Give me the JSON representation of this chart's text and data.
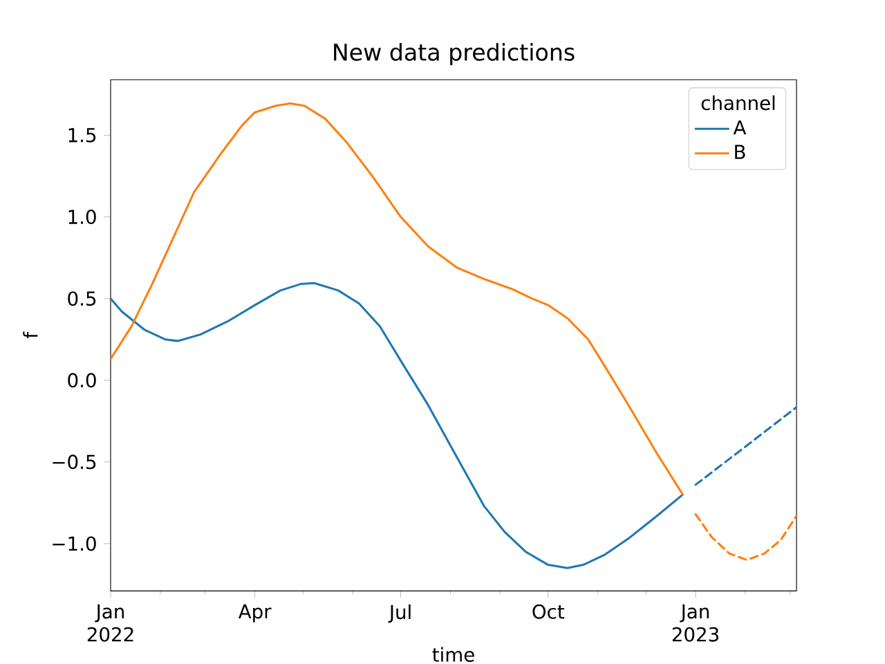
{
  "chart_data": {
    "type": "line",
    "title": "New data predictions",
    "xlabel": "time",
    "ylabel": "f",
    "legend_title": "channel",
    "legend": "top right",
    "xlim": [
      "2022-01-01",
      "2023-03-05"
    ],
    "ylim": [
      -1.29,
      1.84
    ],
    "xticks": [
      {
        "value": "2022-01-01",
        "label": "Jan 2022"
      },
      {
        "value": "2022-02-01",
        "label": null
      },
      {
        "value": "2022-03-01",
        "label": null
      },
      {
        "value": "2022-04-01",
        "label": "Apr"
      },
      {
        "value": "2022-05-01",
        "label": null
      },
      {
        "value": "2022-06-01",
        "label": null
      },
      {
        "value": "2022-07-01",
        "label": "Jul"
      },
      {
        "value": "2022-08-01",
        "label": null
      },
      {
        "value": "2022-09-01",
        "label": null
      },
      {
        "value": "2022-10-01",
        "label": "Oct"
      },
      {
        "value": "2022-11-01",
        "label": null
      },
      {
        "value": "2022-12-01",
        "label": null
      },
      {
        "value": "2023-01-01",
        "label": "Jan 2023"
      },
      {
        "value": "2023-02-01",
        "label": null
      },
      {
        "value": "2023-03-01",
        "label": null
      }
    ],
    "yticks": [
      {
        "value": -1,
        "label": "−1.0"
      },
      {
        "value": -0.5,
        "label": "−0.5"
      },
      {
        "value": 0,
        "label": "0.0"
      },
      {
        "value": 0.5,
        "label": "0.5"
      },
      {
        "value": 1,
        "label": "1.0"
      },
      {
        "value": 1.5,
        "label": "1.5"
      }
    ],
    "series": [
      {
        "name": "A",
        "color": "#1f77b4",
        "line_style": "solid",
        "x": [
          "2022-01-01",
          "2022-01-08",
          "2022-01-22",
          "2022-02-04",
          "2022-02-12",
          "2022-02-26",
          "2022-03-15",
          "2022-04-01",
          "2022-04-17",
          "2022-04-30",
          "2022-05-08",
          "2022-05-23",
          "2022-06-05",
          "2022-06-18",
          "2022-07-01",
          "2022-07-18",
          "2022-08-05",
          "2022-08-22",
          "2022-09-04",
          "2022-09-17",
          "2022-10-01",
          "2022-10-13",
          "2022-10-23",
          "2022-11-05",
          "2022-11-20",
          "2022-12-08",
          "2022-12-24"
        ],
        "values": [
          0.5,
          0.42,
          0.31,
          0.25,
          0.24,
          0.28,
          0.36,
          0.46,
          0.55,
          0.59,
          0.595,
          0.55,
          0.47,
          0.33,
          0.12,
          -0.15,
          -0.47,
          -0.77,
          -0.93,
          -1.05,
          -1.13,
          -1.15,
          -1.13,
          -1.07,
          -0.97,
          -0.83,
          -0.7
        ]
      },
      {
        "name": "B",
        "color": "#ff7f0e",
        "line_style": "solid",
        "x": [
          "2022-01-01",
          "2022-01-14",
          "2022-01-27",
          "2022-02-09",
          "2022-02-22",
          "2022-03-11",
          "2022-03-24",
          "2022-04-01",
          "2022-04-14",
          "2022-04-23",
          "2022-05-02",
          "2022-05-15",
          "2022-05-28",
          "2022-06-14",
          "2022-07-01",
          "2022-07-18",
          "2022-08-05",
          "2022-08-22",
          "2022-09-08",
          "2022-09-21",
          "2022-10-01",
          "2022-10-13",
          "2022-10-26",
          "2022-11-07",
          "2022-11-20",
          "2022-12-08",
          "2022-12-24"
        ],
        "values": [
          0.13,
          0.33,
          0.59,
          0.87,
          1.15,
          1.39,
          1.56,
          1.64,
          1.68,
          1.695,
          1.68,
          1.6,
          1.46,
          1.24,
          1.0,
          0.82,
          0.69,
          0.62,
          0.56,
          0.5,
          0.46,
          0.38,
          0.25,
          0.06,
          -0.15,
          -0.45,
          -0.7
        ]
      },
      {
        "color": "#1f77b4",
        "line_style": "dashed",
        "x": [
          "2023-01-01",
          "2023-02-02",
          "2023-03-05"
        ],
        "values": [
          -0.64,
          -0.4,
          -0.165
        ]
      },
      {
        "color": "#ff7f0e",
        "line_style": "dashed",
        "x": [
          "2023-01-01",
          "2023-01-11",
          "2023-01-22",
          "2023-02-02",
          "2023-02-13",
          "2023-02-23",
          "2023-03-05"
        ],
        "values": [
          -0.82,
          -0.96,
          -1.06,
          -1.1,
          -1.06,
          -0.98,
          -0.83
        ]
      }
    ]
  }
}
